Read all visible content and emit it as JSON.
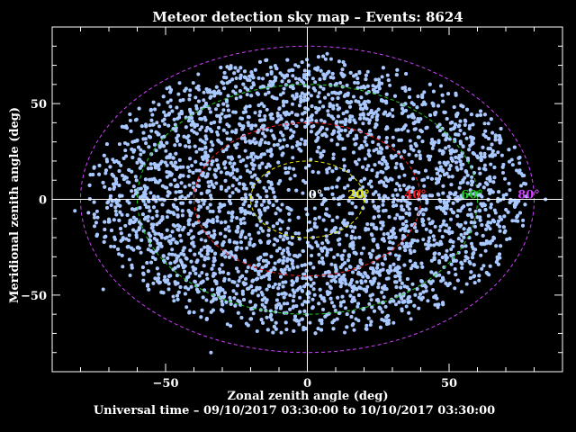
{
  "chart_data": {
    "type": "scatter",
    "title": "Meteor detection sky map – Events: 8624",
    "xlabel": "Zonal zenith angle (deg)",
    "ylabel": "Meridional zenith angle (deg)",
    "footer": "Universal time – 09/10/2017 03:30:00 to 10/10/2017 03:30:00",
    "events": 8624,
    "xlim": [
      -90,
      90
    ],
    "ylim": [
      -90,
      90
    ],
    "xticks": [
      -50,
      0,
      50
    ],
    "yticks": [
      -50,
      0,
      50
    ],
    "grid": false,
    "point_color": "#a8c8ff",
    "rings": [
      {
        "angle": 20,
        "label": "20°",
        "color": "#e8e800"
      },
      {
        "angle": 40,
        "label": "40°",
        "color": "#ff2020"
      },
      {
        "angle": 60,
        "label": "60°",
        "color": "#20d020"
      },
      {
        "angle": 80,
        "label": "80°",
        "color": "#d040ff"
      }
    ],
    "zero_label": "0°",
    "distribution": {
      "sky_radius_x": 78,
      "sky_radius_y": 73,
      "sky_center_y": 2,
      "sparse_core_radius": 20
    }
  }
}
